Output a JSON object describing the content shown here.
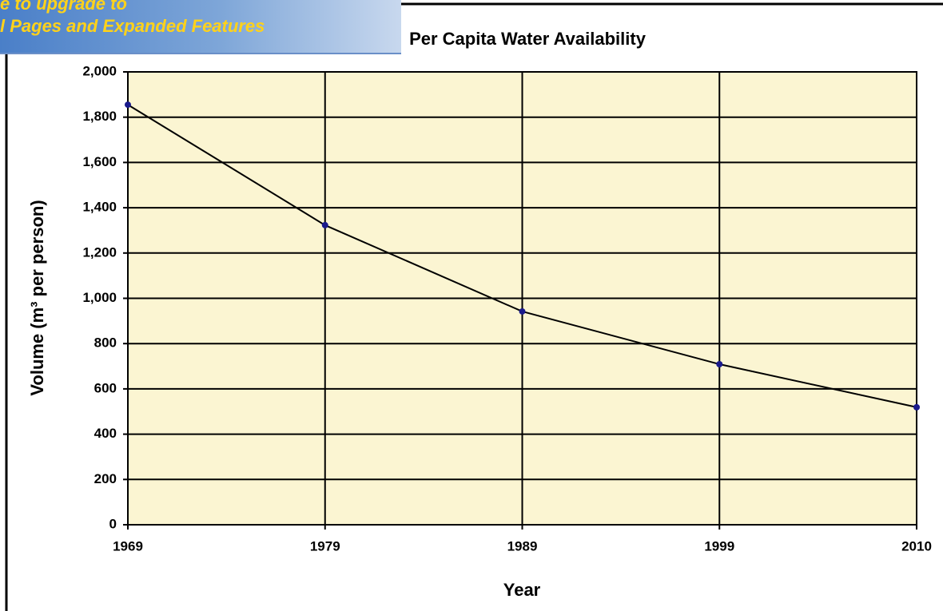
{
  "chart_data": {
    "type": "line",
    "title": "Per Capita Water Availability",
    "x_label": "Year",
    "y_label": "Volume (m³ per person)",
    "categories": [
      "1969",
      "1979",
      "1989",
      "1999",
      "2010"
    ],
    "series": [
      {
        "name": "Volume",
        "color": "#000000",
        "marker_color": "#1a1a8c",
        "values": [
          1855,
          1323,
          942,
          709,
          519
        ]
      }
    ],
    "ylim": [
      0,
      2000
    ],
    "yticks": [
      0,
      200,
      400,
      600,
      800,
      {
        "value": 1000,
        "label": "1,000"
      },
      {
        "value": 1200,
        "label": "1,200"
      },
      {
        "value": 1400,
        "label": "1,400"
      },
      {
        "value": 1600,
        "label": "1,600"
      },
      {
        "value": 1800,
        "label": "1,800"
      },
      {
        "value": 2000,
        "label": "2,000"
      }
    ],
    "grid": true,
    "plot_background": "#fbf5d2"
  },
  "banner": {
    "lines": [
      "e to upgrade to",
      "l Pages and Expanded Features"
    ]
  }
}
